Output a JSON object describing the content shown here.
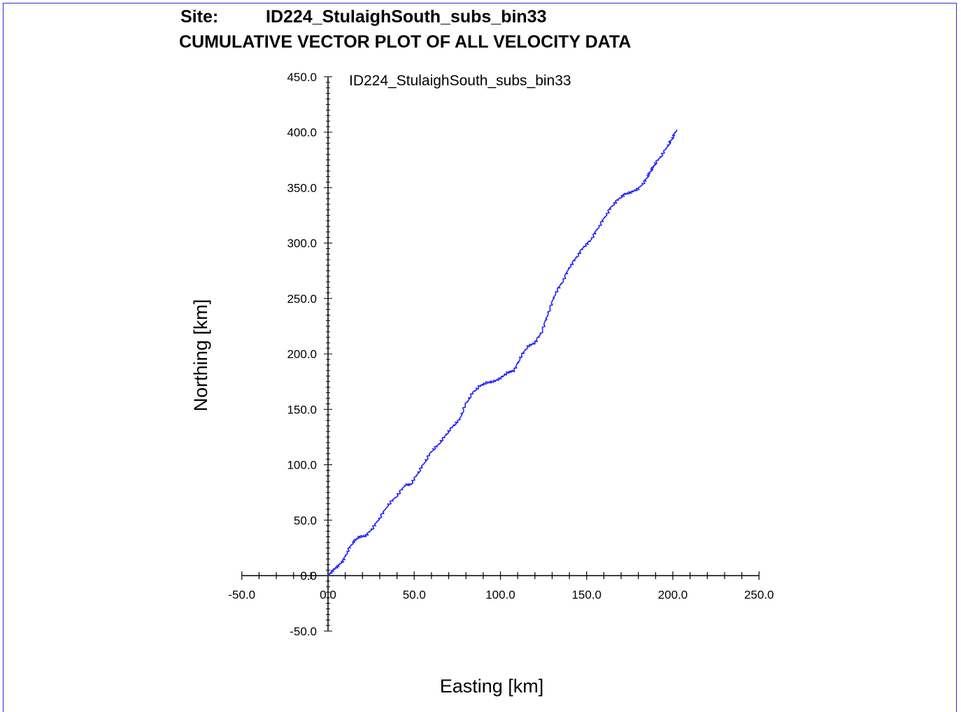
{
  "header": {
    "site_label": "Site:",
    "site_value": "ID224_StulaighSouth_subs_bin33",
    "title": "CUMULATIVE VECTOR PLOT OF ALL VELOCITY DATA"
  },
  "colors": {
    "frame": "#2b2bd6",
    "series": "#1f1fff",
    "axis": "#000000"
  },
  "chart_data": {
    "type": "line",
    "title": "CUMULATIVE VECTOR PLOT OF ALL VELOCITY DATA",
    "xlabel": "Easting [km]",
    "ylabel": "Northing [km]",
    "xlim": [
      -50,
      250
    ],
    "ylim": [
      -50,
      450
    ],
    "x_ticks": [
      "-50.0",
      "0.0",
      "50.0",
      "100.0",
      "150.0",
      "200.0",
      "250.0"
    ],
    "y_ticks": [
      "-50.0",
      "0.0",
      "50.0",
      "100.0",
      "150.0",
      "200.0",
      "250.0",
      "300.0",
      "350.0",
      "400.0",
      "450.0"
    ],
    "grid": false,
    "legend": "top-left",
    "series": [
      {
        "name": "ID224_StulaighSouth_subs_bin33",
        "x": [
          0,
          3,
          6,
          9,
          12,
          15,
          18,
          22,
          26,
          30,
          35,
          40,
          45,
          48,
          52,
          56,
          60,
          64,
          68,
          72,
          76,
          80,
          84,
          88,
          92,
          96,
          100,
          104,
          108,
          112,
          116,
          120,
          124,
          128,
          132,
          136,
          140,
          144,
          148,
          152,
          156,
          160,
          164,
          168,
          172,
          176,
          180,
          184,
          186,
          188,
          190,
          194,
          198,
          200,
          202
        ],
        "y": [
          0,
          5,
          9,
          14,
          24,
          31,
          35,
          36,
          43,
          52,
          64,
          72,
          82,
          82,
          92,
          102,
          112,
          118,
          126,
          134,
          140,
          155,
          165,
          171,
          174,
          175,
          178,
          183,
          185,
          198,
          207,
          210,
          220,
          238,
          255,
          265,
          278,
          287,
          296,
          302,
          312,
          322,
          332,
          339,
          344,
          346,
          349,
          356,
          362,
          367,
          372,
          380,
          390,
          395,
          402
        ]
      }
    ]
  }
}
